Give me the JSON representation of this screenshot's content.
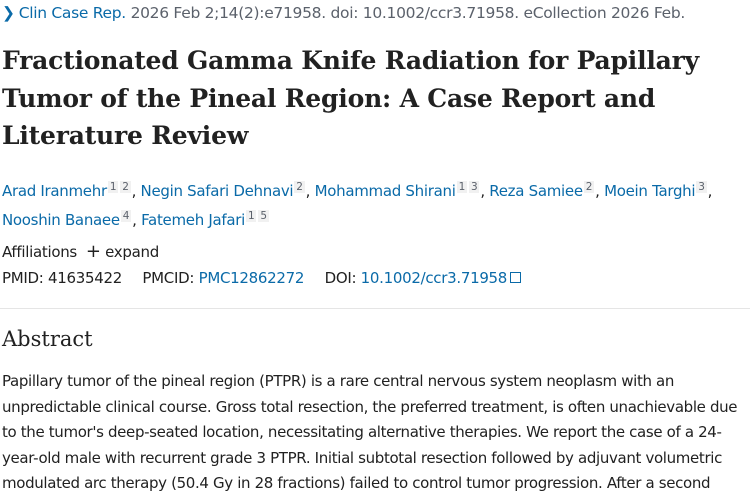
{
  "citation": {
    "journal": "Clin Case Rep.",
    "rest": "2026 Feb 2;14(2):e71958. doi: 10.1002/ccr3.71958. eCollection 2026 Feb."
  },
  "title": "Fractionated Gamma Knife Radiation for Papillary Tumor of the Pineal Region: A Case Report and Literature Review",
  "authors": [
    {
      "name": "Arad Iranmehr",
      "affs": [
        "1",
        "2"
      ]
    },
    {
      "name": "Negin Safari Dehnavi",
      "affs": [
        "2"
      ]
    },
    {
      "name": "Mohammad Shirani",
      "affs": [
        "1",
        "3"
      ]
    },
    {
      "name": "Reza Samiee",
      "affs": [
        "2"
      ]
    },
    {
      "name": "Moein Targhi",
      "affs": [
        "3"
      ]
    },
    {
      "name": "Nooshin Banaee",
      "affs": [
        "4"
      ]
    },
    {
      "name": "Fatemeh Jafari",
      "affs": [
        "1",
        "5"
      ]
    }
  ],
  "affiliations": {
    "label": "Affiliations",
    "expand": "expand"
  },
  "ids": {
    "pmid_label": "PMID:",
    "pmid": "41635422",
    "pmcid_label": "PMCID:",
    "pmcid": "PMC12862272",
    "doi_label": "DOI:",
    "doi": "10.1002/ccr3.71958"
  },
  "abstract": {
    "heading": "Abstract",
    "text": "Papillary tumor of the pineal region (PTPR) is a rare central nervous system neoplasm with an unpredictable clinical course. Gross total resection, the preferred treatment, is often unachievable due to the tumor's deep-seated location, necessitating alternative therapies. We report the case of a 24-year-old male with recurrent grade 3 PTPR. Initial subtotal resection followed by adjuvant volumetric modulated arc therapy (50.4 Gy in 28 fractions) failed to control tumor progression. After a second"
  }
}
